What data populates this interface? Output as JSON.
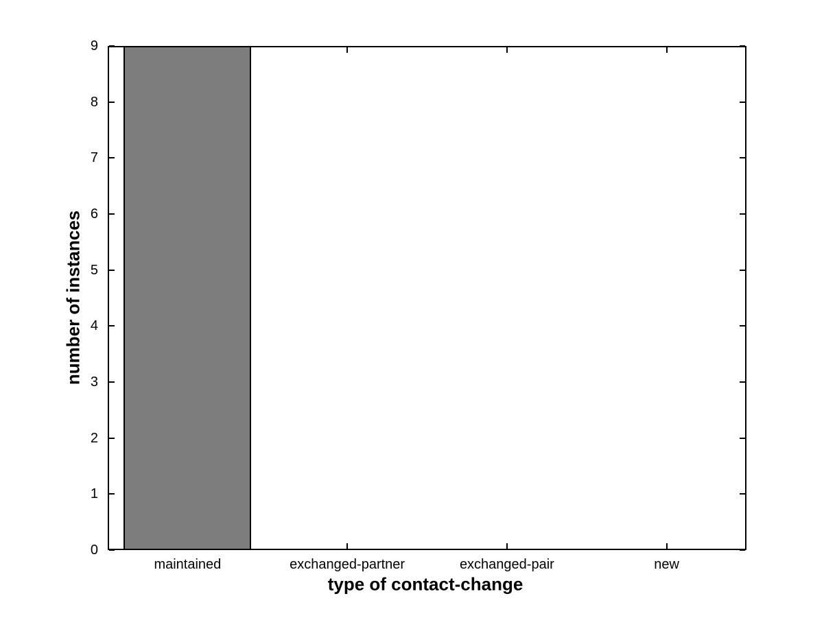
{
  "figure": {
    "background_color": "#ffffff",
    "axis_color": "#000000",
    "text_color": "#000000"
  },
  "chart_data": {
    "type": "bar",
    "title": "",
    "categories": [
      "maintained",
      "exchanged-partner",
      "exchanged-pair",
      "new"
    ],
    "values": [
      9,
      0,
      0,
      0
    ],
    "xlabel": "type of contact-change",
    "ylabel": "number of instances",
    "ylim": [
      0,
      9
    ],
    "yticks": [
      0,
      1,
      2,
      3,
      4,
      5,
      6,
      7,
      8,
      9
    ],
    "bar_color": "#7d7d7d",
    "bar_edge_color": "#000000",
    "bar_width_fraction": 0.8,
    "grid": false,
    "legend": "none",
    "box": "on",
    "tick_direction": "in"
  }
}
